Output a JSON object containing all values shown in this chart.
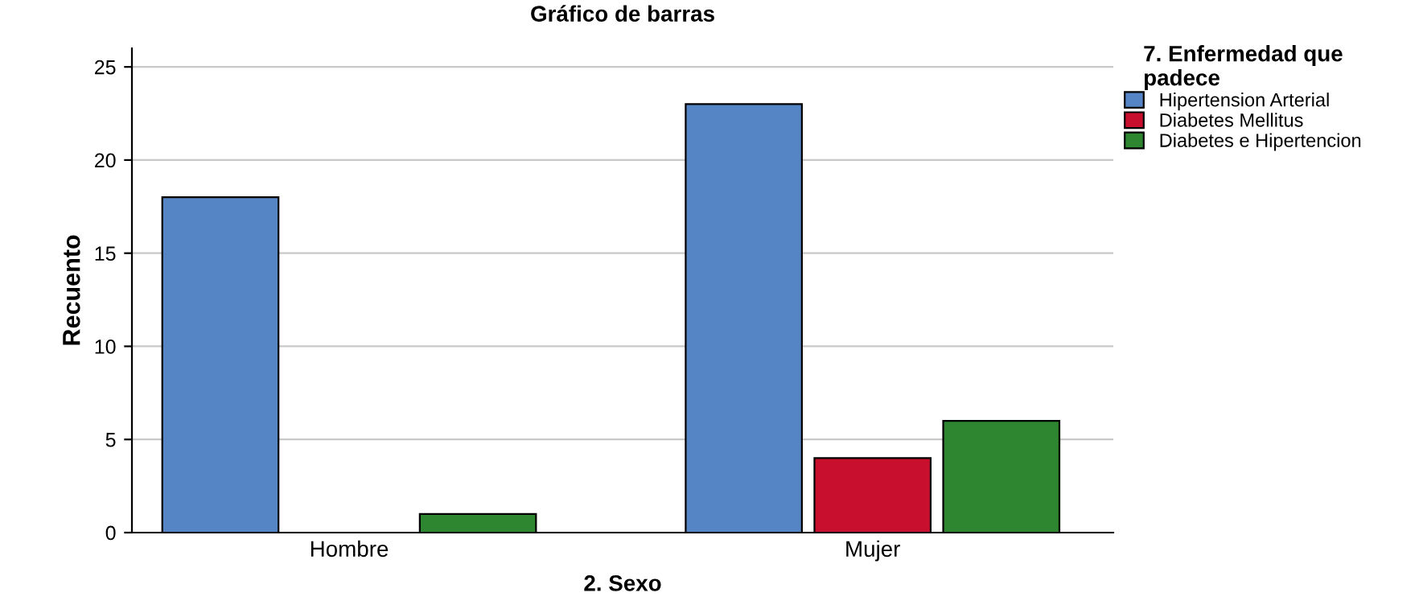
{
  "chart_data": {
    "type": "bar",
    "title": "Gráfico de barras",
    "xlabel": "2. Sexo",
    "ylabel": "Recuento",
    "legend_title": "7. Enfermedad que\npadece",
    "categories": [
      "Hombre",
      "Mujer"
    ],
    "series": [
      {
        "name": "Hipertension Arterial",
        "color": "#5585c5",
        "values": [
          18,
          23
        ]
      },
      {
        "name": "Diabetes Mellitus",
        "color": "#c8102e",
        "values": [
          null,
          4
        ]
      },
      {
        "name": "Diabetes e Hipertencion",
        "color": "#2e8630",
        "values": [
          1,
          6
        ]
      }
    ],
    "ylim": [
      0,
      26
    ],
    "yticks": [
      0,
      5,
      10,
      15,
      20,
      25
    ],
    "grid": "y",
    "legend": "top right"
  }
}
